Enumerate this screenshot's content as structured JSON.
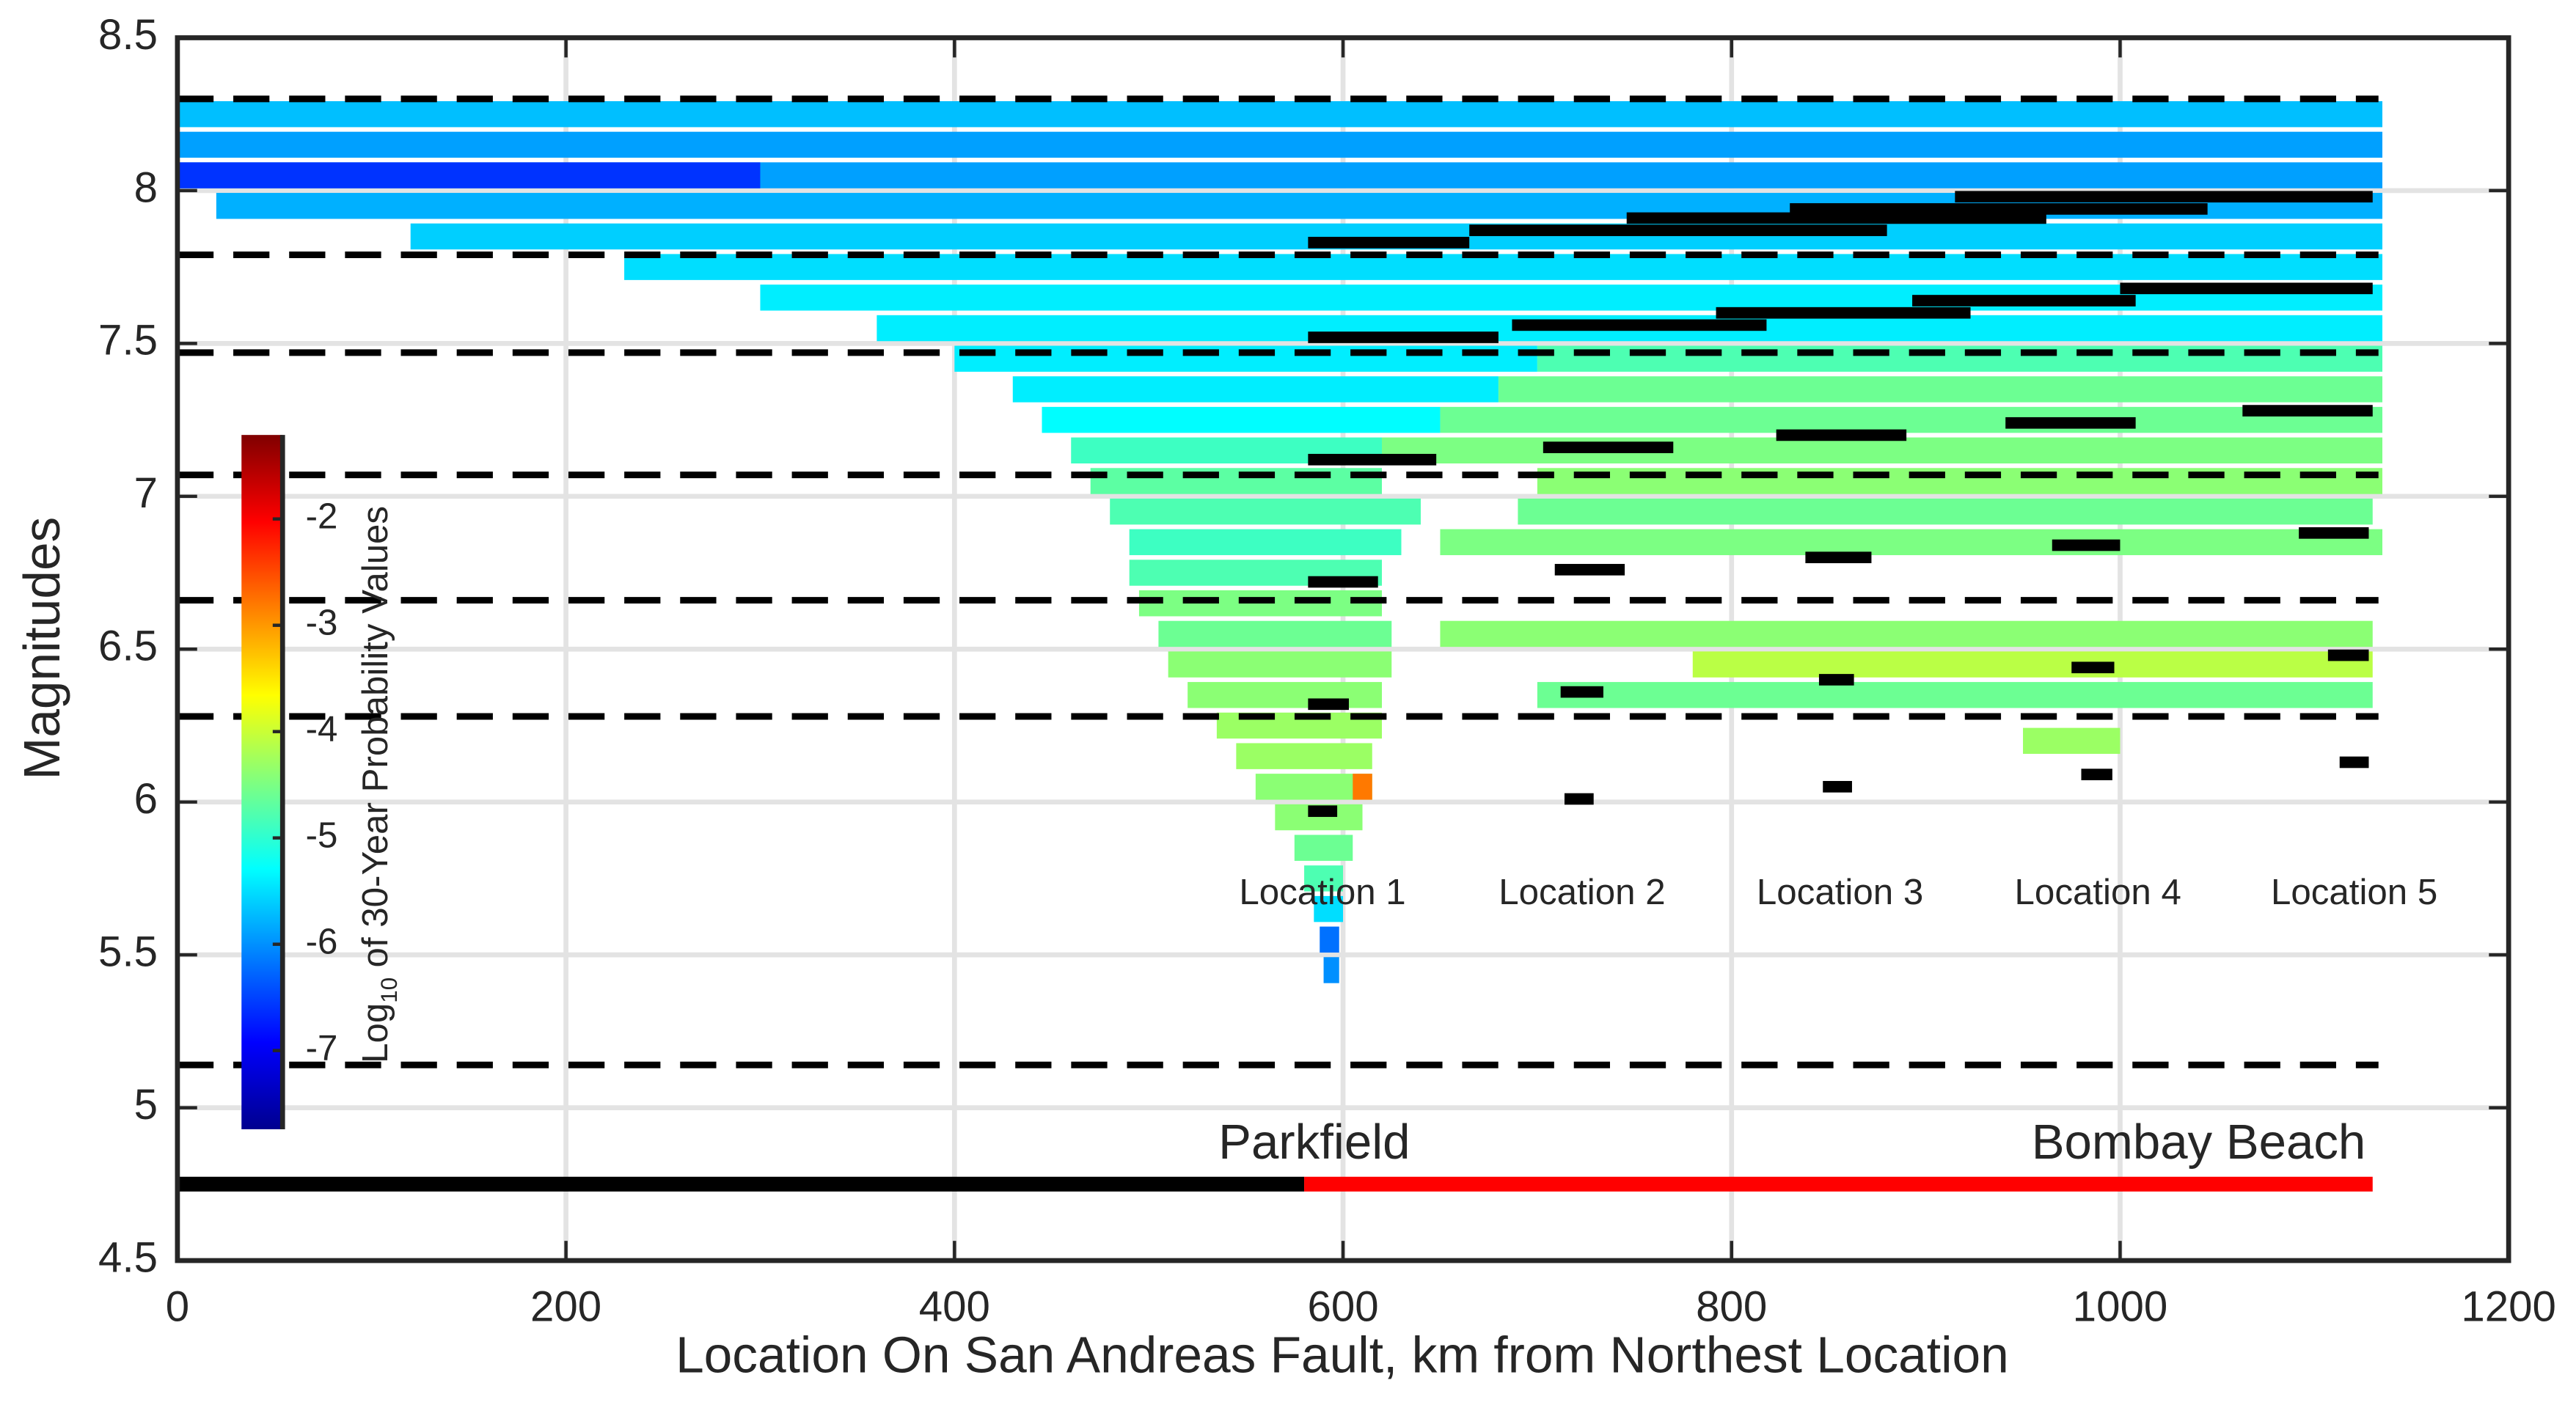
{
  "chart_data": {
    "type": "heatmap",
    "xlabel": "Location On San Andreas Fault, km from Northest Location",
    "ylabel": "Magnitudes",
    "xlim": [
      0,
      1200
    ],
    "xticks": [
      0,
      200,
      400,
      600,
      800,
      1000,
      1200
    ],
    "ylim": [
      4.5,
      8.5
    ],
    "yticks": [
      4.5,
      5,
      5.5,
      6,
      6.5,
      7,
      7.5,
      8,
      8.5
    ],
    "grid": true,
    "colormap": "jet",
    "clim": [
      -7.74,
      -1.21
    ],
    "colorbar_ticks": [
      -2,
      -3,
      -4,
      -5,
      -6,
      -7
    ],
    "colorbar_label": {
      "base": "Log",
      "sub": "10",
      "text": "of 30-Year Probability Values"
    },
    "rows": [
      [
        0,
        1135,
        8.25,
        -5.7
      ],
      [
        0,
        1135,
        8.15,
        -5.9
      ],
      [
        0,
        1135,
        8.05,
        -5.9
      ],
      [
        0,
        300,
        8.05,
        -6.6
      ],
      [
        20,
        1135,
        7.95,
        -5.8
      ],
      [
        120,
        1135,
        7.85,
        -5.6
      ],
      [
        230,
        1135,
        7.75,
        -5.5
      ],
      [
        300,
        1135,
        7.65,
        -5.4
      ],
      [
        360,
        1135,
        7.55,
        -5.4
      ],
      [
        400,
        700,
        7.45,
        -5.4
      ],
      [
        700,
        1135,
        7.45,
        -4.8
      ],
      [
        430,
        680,
        7.35,
        -5.4
      ],
      [
        680,
        1135,
        7.35,
        -4.6
      ],
      [
        445,
        650,
        7.25,
        -5.3
      ],
      [
        650,
        1135,
        7.25,
        -4.6
      ],
      [
        460,
        620,
        7.15,
        -4.9
      ],
      [
        620,
        1135,
        7.15,
        -4.5
      ],
      [
        470,
        620,
        7.05,
        -4.7
      ],
      [
        700,
        1135,
        7.05,
        -4.4
      ],
      [
        480,
        640,
        6.95,
        -4.8
      ],
      [
        690,
        1130,
        6.95,
        -4.6
      ],
      [
        490,
        630,
        6.85,
        -4.9
      ],
      [
        650,
        1135,
        6.85,
        -4.5
      ],
      [
        490,
        620,
        6.75,
        -4.8
      ],
      [
        495,
        620,
        6.65,
        -4.5
      ],
      [
        505,
        625,
        6.55,
        -4.6
      ],
      [
        650,
        1130,
        6.55,
        -4.4
      ],
      [
        510,
        625,
        6.45,
        -4.4
      ],
      [
        780,
        1130,
        6.45,
        -4.1
      ],
      [
        520,
        620,
        6.35,
        -4.4
      ],
      [
        700,
        1130,
        6.35,
        -4.6
      ],
      [
        535,
        620,
        6.25,
        -4.3
      ],
      [
        950,
        1000,
        6.2,
        -4.3
      ],
      [
        545,
        615,
        6.15,
        -4.3
      ],
      [
        555,
        615,
        6.05,
        -4.4
      ],
      [
        605,
        615,
        6.05,
        -2.8
      ],
      [
        565,
        610,
        5.95,
        -4.4
      ],
      [
        575,
        605,
        5.85,
        -4.6
      ],
      [
        580,
        600,
        5.75,
        -4.8
      ],
      [
        585,
        600,
        5.65,
        -5.5
      ],
      [
        588,
        598,
        5.55,
        -6.2
      ],
      [
        590,
        598,
        5.45,
        -6.0
      ]
    ],
    "markers": {
      "color": "#000000",
      "segments": [
        [
          582,
          665,
          7.83
        ],
        [
          665,
          880,
          7.87
        ],
        [
          746,
          962,
          7.91
        ],
        [
          830,
          1045,
          7.94
        ],
        [
          915,
          1130,
          7.98
        ],
        [
          582,
          680,
          7.52
        ],
        [
          687,
          818,
          7.56
        ],
        [
          792,
          923,
          7.6
        ],
        [
          893,
          1008,
          7.64
        ],
        [
          1000,
          1130,
          7.68
        ],
        [
          582,
          648,
          7.12
        ],
        [
          703,
          770,
          7.16
        ],
        [
          823,
          890,
          7.2
        ],
        [
          941,
          1008,
          7.24
        ],
        [
          1063,
          1130,
          7.28
        ],
        [
          582,
          618,
          6.72
        ],
        [
          709,
          745,
          6.76
        ],
        [
          838,
          872,
          6.8
        ],
        [
          965,
          1000,
          6.84
        ],
        [
          1092,
          1128,
          6.88
        ],
        [
          582,
          603,
          6.32
        ],
        [
          712,
          734,
          6.36
        ],
        [
          845,
          863,
          6.4
        ],
        [
          975,
          997,
          6.44
        ],
        [
          1107,
          1128,
          6.48
        ],
        [
          582,
          597,
          5.97
        ],
        [
          714,
          729,
          6.01
        ],
        [
          847,
          862,
          6.05
        ],
        [
          980,
          996,
          6.09
        ],
        [
          1113,
          1128,
          6.13
        ]
      ]
    },
    "dashed_levels": {
      "x": [
        0,
        1133
      ],
      "values": [
        8.3,
        7.79,
        7.47,
        7.07,
        6.66,
        6.28,
        5.14
      ]
    },
    "fault": {
      "y": 4.75,
      "segments": [
        {
          "x": [
            0,
            580
          ],
          "color": "#000000"
        },
        {
          "x": [
            580,
            1130
          ],
          "color": "#ff0000"
        }
      ]
    },
    "annotations": [
      "Location 1",
      "Location 2",
      "Location 3",
      "Location 4",
      "Location 5",
      "Parkfield",
      "Bombay Beach"
    ]
  }
}
